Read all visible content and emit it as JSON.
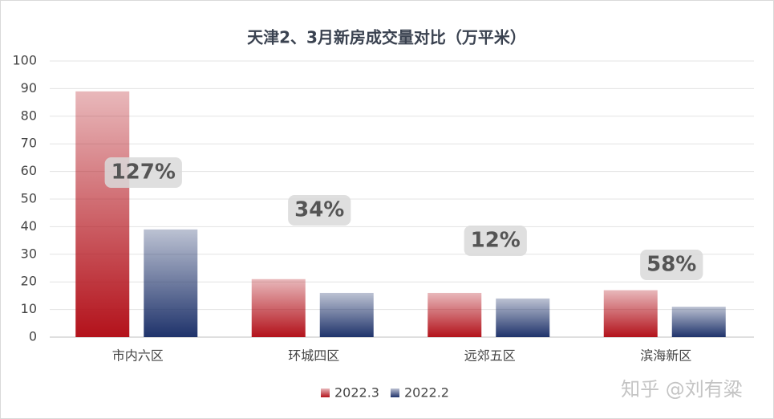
{
  "chart_data": {
    "type": "bar",
    "title": "天津2、3月新房成交量对比（万平米）",
    "categories": [
      "市内六区",
      "环城四区",
      "远郊五区",
      "滨海新区"
    ],
    "series": [
      {
        "name": "2022.3",
        "color": "#b3121b",
        "values": [
          89,
          21,
          16,
          17
        ]
      },
      {
        "name": "2022.2",
        "color": "#1f336b",
        "values": [
          39,
          16,
          14,
          11
        ]
      }
    ],
    "ylim": [
      0,
      100
    ],
    "yticks": [
      0,
      10,
      20,
      30,
      40,
      50,
      60,
      70,
      80,
      90,
      100
    ],
    "grid": true,
    "annotations": [
      "127%",
      "34%",
      "12%",
      "58%"
    ],
    "legend": "bottom",
    "watermark": "知乎 @刘有粱"
  }
}
